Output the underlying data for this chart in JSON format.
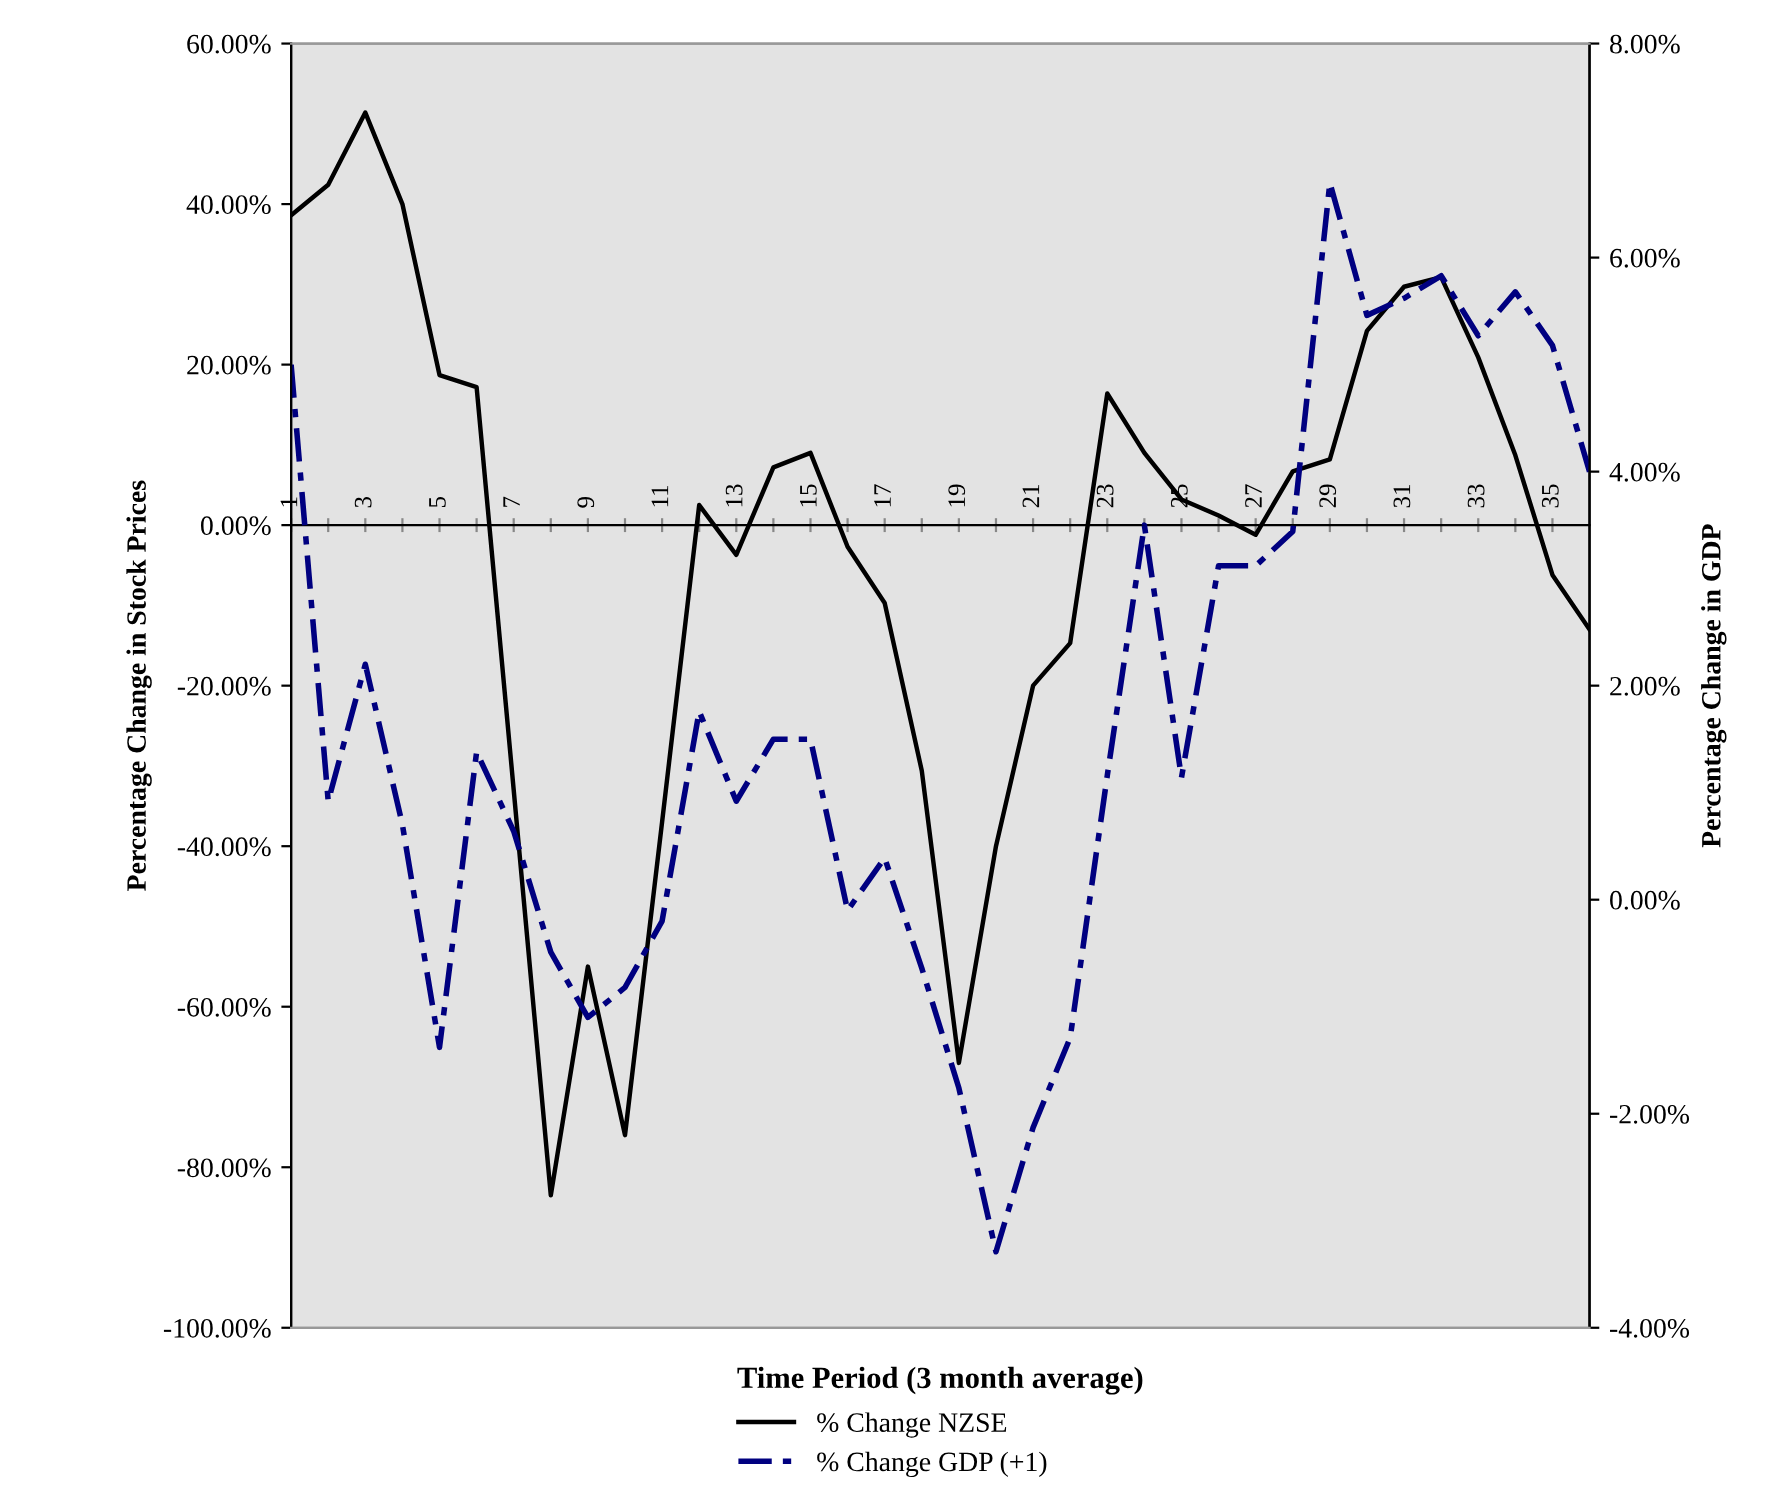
{
  "chart_data": {
    "type": "line",
    "xlabel": "Time Period (3 month average)",
    "ylabel": "Percentage Change in Stock Prices",
    "y2label": "Percentage Change in GDP",
    "x": [
      1,
      2,
      3,
      4,
      5,
      6,
      7,
      8,
      9,
      10,
      11,
      12,
      13,
      14,
      15,
      16,
      17,
      18,
      19,
      20,
      21,
      22,
      23,
      24,
      25,
      26,
      27,
      28,
      29,
      30,
      31,
      32,
      33,
      34,
      35,
      36
    ],
    "xlim": [
      1,
      36
    ],
    "xticks": [
      1,
      {
        "value": 2,
        "label": null
      },
      3,
      {
        "value": 4,
        "label": null
      },
      5,
      {
        "value": 6,
        "label": null
      },
      7,
      {
        "value": 8,
        "label": null
      },
      9,
      {
        "value": 10,
        "label": null
      },
      11,
      {
        "value": 12,
        "label": null
      },
      13,
      {
        "value": 14,
        "label": null
      },
      15,
      {
        "value": 16,
        "label": null
      },
      17,
      {
        "value": 18,
        "label": null
      },
      19,
      {
        "value": 20,
        "label": null
      },
      21,
      {
        "value": 22,
        "label": null
      },
      23,
      {
        "value": 24,
        "label": null
      },
      25,
      {
        "value": 26,
        "label": null
      },
      27,
      {
        "value": 28,
        "label": null
      },
      29,
      {
        "value": 30,
        "label": null
      },
      31,
      {
        "value": 32,
        "label": null
      },
      33,
      {
        "value": 34,
        "label": null
      },
      35
    ],
    "ylim": [
      -100,
      60
    ],
    "yticks": [
      {
        "value": -100,
        "label": "-100.00%"
      },
      {
        "value": -80,
        "label": "-80.00%"
      },
      {
        "value": -60,
        "label": "-60.00%"
      },
      {
        "value": -40,
        "label": "-40.00%"
      },
      {
        "value": -20,
        "label": "-20.00%"
      },
      {
        "value": 0,
        "label": "0.00%"
      },
      {
        "value": 20,
        "label": "20.00%"
      },
      {
        "value": 40,
        "label": "40.00%"
      },
      {
        "value": 60,
        "label": "60.00%"
      }
    ],
    "y2lim": [
      -4,
      8
    ],
    "y2ticks": [
      {
        "value": -4,
        "label": "-4.00%"
      },
      {
        "value": -2,
        "label": "-2.00%"
      },
      {
        "value": 0,
        "label": "0.00%"
      },
      {
        "value": 2,
        "label": "2.00%"
      },
      {
        "value": 4,
        "label": "4.00%"
      },
      {
        "value": 6,
        "label": "6.00%"
      },
      {
        "value": 8,
        "label": "8.00%"
      }
    ],
    "series": [
      {
        "name": "% Change NZSE",
        "color": "#000000",
        "line_style": "solid",
        "values": [
          38.6,
          42.4,
          51.4,
          40,
          18.7,
          17.2,
          -33,
          -83.5,
          -55,
          -76,
          -37,
          2.5,
          -3.7,
          7.2,
          9.0,
          -2.7,
          -9.7,
          -30.6,
          -67,
          -40,
          -20,
          -14.7,
          16.4,
          9.0,
          3.2,
          1.2,
          -1.2,
          6.7,
          8.2,
          24.2,
          29.7,
          30.9,
          20.9,
          8.7,
          -6.2,
          -13
        ]
      },
      {
        "name": "% Change GDP (+1)",
        "color": "#000080",
        "line_style": "dashed",
        "axis": "y2",
        "values": [
          5.0,
          0.92,
          2.2,
          0.7,
          -1.38,
          1.38,
          0.64,
          -0.49,
          -1.1,
          -0.82,
          -0.2,
          1.76,
          0.92,
          1.5,
          1.5,
          -0.1,
          0.39,
          -0.64,
          -1.76,
          -3.29,
          -2.13,
          -1.29,
          1.16,
          3.5,
          1.14,
          3.12,
          3.12,
          3.44,
          6.7,
          5.46,
          5.62,
          5.83,
          5.27,
          5.68,
          5.18,
          4.0
        ]
      }
    ],
    "grid": false,
    "legend": "bottom"
  }
}
